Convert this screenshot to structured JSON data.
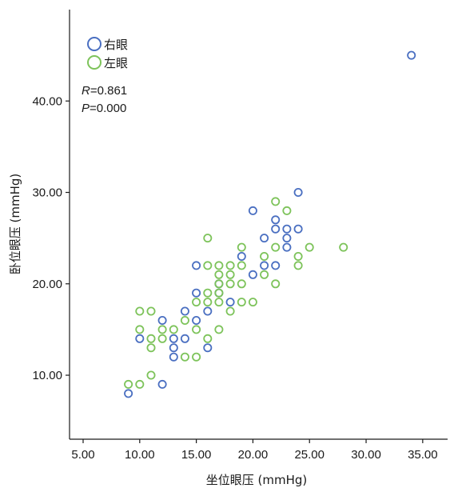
{
  "chart_data": {
    "type": "scatter",
    "title": "",
    "xlabel": "坐位眼压 (mmHg)",
    "ylabel": "卧位眼压 (mmHg)",
    "xlim": [
      3.8,
      37.2
    ],
    "ylim": [
      3.0,
      50.0
    ],
    "xticks": [
      5,
      10,
      15,
      20,
      25,
      30,
      35
    ],
    "xtick_labels": [
      "5.00",
      "10.00",
      "15.00",
      "20.00",
      "25.00",
      "30.00",
      "35.00"
    ],
    "yticks": [
      10,
      20,
      30,
      40
    ],
    "ytick_labels": [
      "10.00",
      "20.00",
      "30.00",
      "40.00"
    ],
    "grid": false,
    "legend_position": "top-left",
    "annotations": {
      "r_label": "R",
      "r_value": "=0.861",
      "p_label": "P",
      "p_value": "=0.000"
    },
    "series": [
      {
        "name": "右眼",
        "color": "#4a6fc1",
        "marker": "circle-open",
        "points": [
          [
            34,
            45
          ],
          [
            24,
            30
          ],
          [
            20,
            28
          ],
          [
            22,
            27
          ],
          [
            22,
            26
          ],
          [
            23,
            26
          ],
          [
            24,
            26
          ],
          [
            21,
            25
          ],
          [
            23,
            25
          ],
          [
            23,
            24
          ],
          [
            19,
            23
          ],
          [
            15,
            22
          ],
          [
            21,
            22
          ],
          [
            22,
            22
          ],
          [
            20,
            21
          ],
          [
            17,
            20
          ],
          [
            15,
            19
          ],
          [
            17,
            19
          ],
          [
            18,
            18
          ],
          [
            14,
            17
          ],
          [
            16,
            17
          ],
          [
            12,
            16
          ],
          [
            15,
            16
          ],
          [
            13,
            14
          ],
          [
            14,
            14
          ],
          [
            10,
            14
          ],
          [
            13,
            13
          ],
          [
            16,
            13
          ],
          [
            13,
            12
          ],
          [
            12,
            9
          ],
          [
            9,
            8
          ]
        ]
      },
      {
        "name": "左眼",
        "color": "#7dc35a",
        "marker": "circle-open",
        "points": [
          [
            22,
            29
          ],
          [
            23,
            28
          ],
          [
            16,
            25
          ],
          [
            19,
            24
          ],
          [
            22,
            24
          ],
          [
            25,
            24
          ],
          [
            28,
            24
          ],
          [
            21,
            23
          ],
          [
            24,
            23
          ],
          [
            16,
            22
          ],
          [
            17,
            22
          ],
          [
            18,
            22
          ],
          [
            19,
            22
          ],
          [
            24,
            22
          ],
          [
            17,
            21
          ],
          [
            18,
            21
          ],
          [
            21,
            21
          ],
          [
            17,
            20
          ],
          [
            18,
            20
          ],
          [
            19,
            20
          ],
          [
            22,
            20
          ],
          [
            16,
            19
          ],
          [
            17,
            19
          ],
          [
            15,
            18
          ],
          [
            16,
            18
          ],
          [
            17,
            18
          ],
          [
            19,
            18
          ],
          [
            20,
            18
          ],
          [
            10,
            17
          ],
          [
            11,
            17
          ],
          [
            18,
            17
          ],
          [
            12,
            15
          ],
          [
            15,
            15
          ],
          [
            17,
            15
          ],
          [
            10,
            15
          ],
          [
            11,
            14
          ],
          [
            12,
            14
          ],
          [
            16,
            14
          ],
          [
            11,
            13
          ],
          [
            14,
            12
          ],
          [
            15,
            12
          ],
          [
            11,
            10
          ],
          [
            9,
            9
          ],
          [
            10,
            9
          ],
          [
            14,
            16
          ],
          [
            13,
            15
          ]
        ]
      }
    ]
  }
}
